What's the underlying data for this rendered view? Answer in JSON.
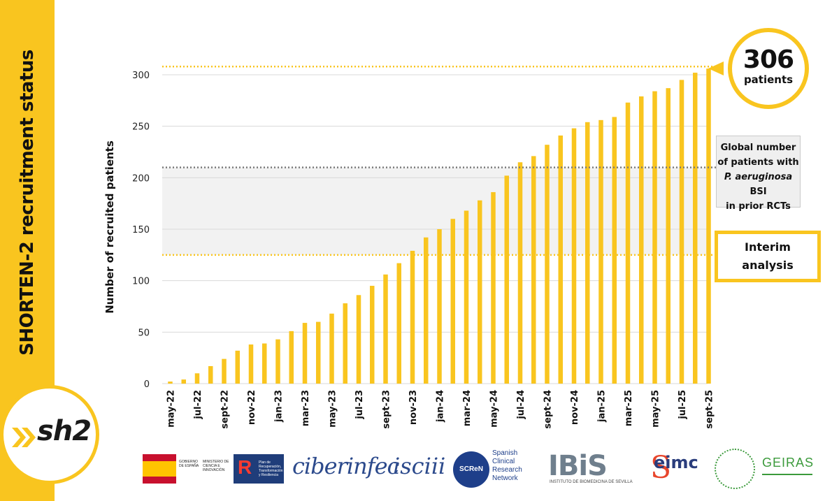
{
  "sidebar": {
    "title": "SHORTEN-2 recruitment status",
    "logo_text": "sh2",
    "accent_color": "#f9c51f"
  },
  "callouts": {
    "total_value": "306",
    "total_label": "patients",
    "global_line1": "Global number",
    "global_line2": "of patients with",
    "global_line3_italic": "P. aeruginosa",
    "global_line3_rest": " BSI",
    "global_line4": "in prior RCTs",
    "interim_line1": "Interim",
    "interim_line2": "analysis"
  },
  "logos": {
    "gov_text1": "GOBIERNO DE ESPAÑA",
    "gov_text2": "MINISTERIO DE CIENCIA E INNOVACIÓN",
    "prtr_text": "Plan de Recuperación, Transformación y Resiliencia",
    "ciber": "ciberinfec",
    "iscii": "isciii",
    "screen_badge": "SCReN",
    "screen_line1": "Spanish",
    "screen_line2": "Clinical",
    "screen_line3": "Research",
    "screen_line4": "Network",
    "ibis": "IBiS",
    "ibis_sub": "INSTITUTO DE BIOMEDICINA DE SEVILLA",
    "seimc": "eimc",
    "seimc_initial": "S",
    "geiras": "GEIRAS"
  },
  "chart_data": {
    "type": "bar",
    "title": "",
    "xlabel": "",
    "ylabel": "Number of recruited patients",
    "ylim": [
      0,
      310
    ],
    "yticks": [
      0,
      50,
      100,
      150,
      200,
      250,
      300
    ],
    "grid": true,
    "bar_color": "#f9c51f",
    "categories": [
      "may-22",
      "jun-22",
      "jul-22",
      "aug-22",
      "sept-22",
      "oct-22",
      "nov-22",
      "dec-22",
      "jan-23",
      "feb-23",
      "mar-23",
      "apr-23",
      "may-23",
      "jun-23",
      "jul-23",
      "aug-23",
      "sept-23",
      "oct-23",
      "nov-23",
      "dec-23",
      "jan-24",
      "feb-24",
      "mar-24",
      "apr-24",
      "may-24",
      "jun-24",
      "jul-24",
      "aug-24",
      "sept-24",
      "oct-24",
      "nov-24",
      "dec-24",
      "jan-25",
      "feb-25",
      "mar-25",
      "apr-25",
      "may-25",
      "jun-25",
      "jul-25",
      "aug-25",
      "sept-25"
    ],
    "tick_labels": [
      "may-22",
      "jul-22",
      "sept-22",
      "nov-22",
      "jan-23",
      "mar-23",
      "may-23",
      "jul-23",
      "sept-23",
      "nov-23",
      "jan-24",
      "mar-24",
      "may-24",
      "jul-24",
      "sept-24",
      "nov-24",
      "jan-25",
      "mar-25",
      "may-25",
      "jul-25",
      "sept-25"
    ],
    "values": [
      2,
      4,
      10,
      17,
      24,
      32,
      38,
      39,
      43,
      51,
      59,
      60,
      68,
      78,
      86,
      95,
      106,
      117,
      129,
      142,
      150,
      160,
      168,
      178,
      186,
      202,
      215,
      221,
      232,
      241,
      248,
      254,
      256,
      259,
      273,
      279,
      284,
      287,
      295,
      302,
      306
    ],
    "reference_lines": [
      {
        "name": "total",
        "value": 308,
        "color": "#f9c51f"
      },
      {
        "name": "global-prior-rcts",
        "value": 210,
        "color": "#7a7a7a"
      },
      {
        "name": "interim",
        "value": 125,
        "color": "#f9c51f"
      }
    ],
    "shaded_band": {
      "from": 125,
      "to": 210,
      "color": "#f2f2f2"
    }
  }
}
